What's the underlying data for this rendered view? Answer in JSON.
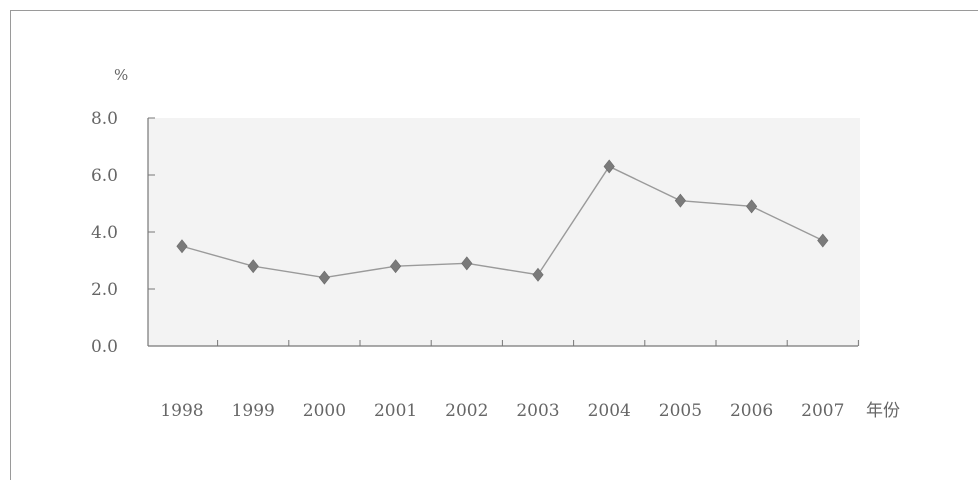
{
  "chart_data": {
    "type": "line",
    "title": "",
    "ylabel": "%",
    "xlabel": "年份",
    "ylim": [
      0,
      8
    ],
    "yticks": [
      "0.0",
      "2.0",
      "4.0",
      "6.0",
      "8.0"
    ],
    "categories": [
      "1998",
      "1999",
      "2000",
      "2001",
      "2002",
      "2003",
      "2004",
      "2005",
      "2006",
      "2007"
    ],
    "series": [
      {
        "values": [
          3.5,
          2.8,
          2.4,
          2.8,
          2.9,
          2.5,
          6.3,
          5.1,
          4.9,
          3.7
        ]
      }
    ],
    "grid": false,
    "legend": "none",
    "colors": {
      "line": "#9a9a9a",
      "marker": "#7a7a7a",
      "axis": "#777777",
      "text": "#666666"
    }
  }
}
